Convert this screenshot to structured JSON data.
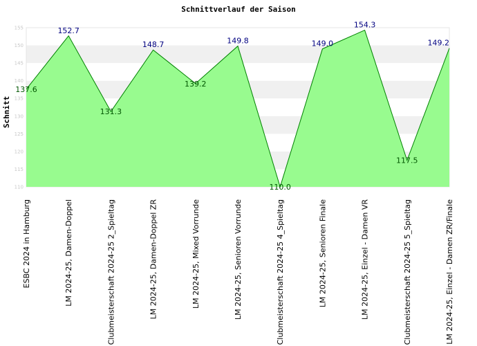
{
  "chart_data": {
    "type": "area",
    "title": "Schnittverlauf der Saison",
    "xlabel": "",
    "ylabel": "Schnitt",
    "ylim": [
      110,
      155
    ],
    "yticks": [
      110,
      115,
      120,
      125,
      130,
      135,
      140,
      145,
      150,
      155
    ],
    "grid": true,
    "legend": "none",
    "categories": [
      "ESBC 2024 in Hamburg",
      "LM 2024-25, Damen-Doppel",
      "Clubmeisterschaft 2024-25   2_Spieltag",
      "LM 2024-25, Damen-Doppel ZR",
      "LM 2024-25, Mixed Vorrunde",
      "LM 2024-25, Senioren Vorrunde",
      "Clubmeisterschaft 2024-25   4_Spieltag",
      "LM 2024-25, Senioren Finale",
      "LM 2024-25, Einzel - Damen VR",
      "Clubmeisterschaft 2024-25   5_Spieltag",
      "LM 2024-25, Einzel - Damen ZR/Finale"
    ],
    "values": [
      137.6,
      152.7,
      131.3,
      148.7,
      139.2,
      149.8,
      110.0,
      149.0,
      154.3,
      117.5,
      149.2
    ],
    "data_labels": [
      "137.6",
      "152.7",
      "131.3",
      "148.7",
      "139.2",
      "149.8",
      "110.0",
      "149.0",
      "154.3",
      "117.5",
      "149.2"
    ],
    "colors": {
      "fill": "#98fb8f",
      "line": "#008000",
      "label_above": "#000080",
      "label_below": "#005500",
      "band": "#f0f0f0",
      "tick": "#c8c8c8"
    }
  }
}
